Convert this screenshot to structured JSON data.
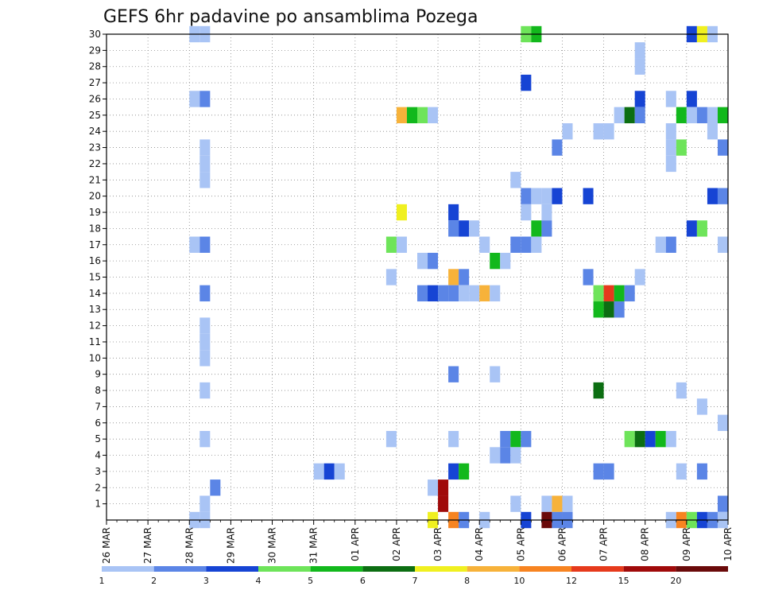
{
  "chart_data": {
    "type": "heatmap",
    "title": "GEFS 6hr padavine po ansamblima Pozega",
    "xlabel": "",
    "ylabel": "",
    "x_tick_labels": [
      "26 MAR",
      "27 MAR",
      "28 MAR",
      "29 MAR",
      "30 MAR",
      "31 MAR",
      "01 APR",
      "02 APR",
      "03 APR",
      "04 APR",
      "05 APR",
      "06 APR",
      "07 APR",
      "08 APR",
      "09 APR",
      "10 APR"
    ],
    "y_tick_labels": [
      "1",
      "2",
      "3",
      "4",
      "5",
      "6",
      "7",
      "8",
      "9",
      "10",
      "11",
      "12",
      "13",
      "14",
      "15",
      "16",
      "17",
      "18",
      "19",
      "20",
      "21",
      "22",
      "23",
      "24",
      "25",
      "26",
      "27",
      "28",
      "29",
      "30"
    ],
    "xlim": [
      0,
      60
    ],
    "ylim": [
      0,
      30
    ],
    "x_units": "6-hour steps from 26 MAR 00Z",
    "y_units": "ensemble member",
    "grid": true,
    "color_scale": {
      "labels": [
        "1",
        "2",
        "3",
        "4",
        "5",
        "6",
        "7",
        "8",
        "10",
        "12",
        "15",
        "20"
      ],
      "colors": [
        "#a9c4f5",
        "#5b85e6",
        "#1644d4",
        "#6ee45a",
        "#12b81c",
        "#0c6e12",
        "#f0f020",
        "#f7b23a",
        "#f78421",
        "#e63a1c",
        "#a00a0a",
        "#6a0a0a"
      ]
    },
    "cells": [
      [
        8,
        30,
        0
      ],
      [
        9,
        30,
        0
      ],
      [
        40,
        30,
        3
      ],
      [
        41,
        30,
        4
      ],
      [
        56,
        30,
        2
      ],
      [
        57,
        30,
        6
      ],
      [
        58,
        30,
        0
      ],
      [
        51,
        29,
        0
      ],
      [
        51,
        28,
        0
      ],
      [
        40,
        27,
        2
      ],
      [
        8,
        26,
        0
      ],
      [
        9,
        26,
        1
      ],
      [
        51,
        26,
        2
      ],
      [
        54,
        26,
        0
      ],
      [
        56,
        26,
        2
      ],
      [
        28,
        25,
        7
      ],
      [
        29,
        25,
        4
      ],
      [
        30,
        25,
        3
      ],
      [
        31,
        25,
        0
      ],
      [
        49,
        25,
        0
      ],
      [
        50,
        25,
        5
      ],
      [
        51,
        25,
        1
      ],
      [
        55,
        25,
        4
      ],
      [
        56,
        25,
        0
      ],
      [
        57,
        25,
        1
      ],
      [
        58,
        25,
        0
      ],
      [
        59,
        25,
        4
      ],
      [
        44,
        24,
        0
      ],
      [
        47,
        24,
        0
      ],
      [
        48,
        24,
        0
      ],
      [
        54,
        24,
        0
      ],
      [
        58,
        24,
        0
      ],
      [
        9,
        23,
        0
      ],
      [
        43,
        23,
        1
      ],
      [
        54,
        23,
        0
      ],
      [
        55,
        23,
        3
      ],
      [
        59,
        23,
        1
      ],
      [
        9,
        22,
        0
      ],
      [
        54,
        22,
        0
      ],
      [
        9,
        21,
        0
      ],
      [
        39,
        21,
        0
      ],
      [
        40,
        20,
        1
      ],
      [
        41,
        20,
        0
      ],
      [
        42,
        20,
        0
      ],
      [
        43,
        20,
        2
      ],
      [
        46,
        20,
        2
      ],
      [
        58,
        20,
        2
      ],
      [
        59,
        20,
        1
      ],
      [
        28,
        19,
        6
      ],
      [
        33,
        19,
        2
      ],
      [
        40,
        19,
        0
      ],
      [
        42,
        19,
        0
      ],
      [
        33,
        18,
        1
      ],
      [
        34,
        18,
        2
      ],
      [
        35,
        18,
        0
      ],
      [
        41,
        18,
        4
      ],
      [
        42,
        18,
        1
      ],
      [
        56,
        18,
        2
      ],
      [
        57,
        18,
        3
      ],
      [
        8,
        17,
        0
      ],
      [
        9,
        17,
        1
      ],
      [
        27,
        17,
        3
      ],
      [
        28,
        17,
        0
      ],
      [
        36,
        17,
        0
      ],
      [
        39,
        17,
        1
      ],
      [
        40,
        17,
        1
      ],
      [
        41,
        17,
        0
      ],
      [
        53,
        17,
        0
      ],
      [
        54,
        17,
        1
      ],
      [
        59,
        17,
        0
      ],
      [
        30,
        16,
        0
      ],
      [
        31,
        16,
        1
      ],
      [
        37,
        16,
        4
      ],
      [
        38,
        16,
        0
      ],
      [
        27,
        15,
        0
      ],
      [
        33,
        15,
        7
      ],
      [
        34,
        15,
        1
      ],
      [
        46,
        15,
        1
      ],
      [
        51,
        15,
        0
      ],
      [
        9,
        14,
        1
      ],
      [
        30,
        14,
        1
      ],
      [
        31,
        14,
        2
      ],
      [
        32,
        14,
        1
      ],
      [
        33,
        14,
        1
      ],
      [
        34,
        14,
        0
      ],
      [
        35,
        14,
        0
      ],
      [
        36,
        14,
        7
      ],
      [
        37,
        14,
        0
      ],
      [
        47,
        14,
        3
      ],
      [
        48,
        14,
        9
      ],
      [
        49,
        14,
        4
      ],
      [
        50,
        14,
        1
      ],
      [
        47,
        13,
        4
      ],
      [
        48,
        13,
        5
      ],
      [
        49,
        13,
        1
      ],
      [
        9,
        12,
        0
      ],
      [
        9,
        11,
        0
      ],
      [
        9,
        10,
        0
      ],
      [
        33,
        9,
        1
      ],
      [
        37,
        9,
        0
      ],
      [
        9,
        8,
        0
      ],
      [
        47,
        8,
        5
      ],
      [
        55,
        8,
        0
      ],
      [
        57,
        7,
        0
      ],
      [
        59,
        6,
        0
      ],
      [
        9,
        5,
        0
      ],
      [
        27,
        5,
        0
      ],
      [
        33,
        5,
        0
      ],
      [
        38,
        5,
        1
      ],
      [
        39,
        5,
        4
      ],
      [
        40,
        5,
        1
      ],
      [
        50,
        5,
        3
      ],
      [
        51,
        5,
        5
      ],
      [
        52,
        5,
        2
      ],
      [
        53,
        5,
        4
      ],
      [
        54,
        5,
        0
      ],
      [
        37,
        4,
        0
      ],
      [
        38,
        4,
        1
      ],
      [
        39,
        4,
        0
      ],
      [
        20,
        3,
        0
      ],
      [
        21,
        3,
        2
      ],
      [
        22,
        3,
        0
      ],
      [
        33,
        3,
        2
      ],
      [
        34,
        3,
        4
      ],
      [
        47,
        3,
        1
      ],
      [
        48,
        3,
        1
      ],
      [
        55,
        3,
        0
      ],
      [
        57,
        3,
        1
      ],
      [
        10,
        2,
        1
      ],
      [
        31,
        2,
        0
      ],
      [
        32,
        2,
        10
      ],
      [
        32,
        1,
        10
      ],
      [
        9,
        1,
        0
      ],
      [
        39,
        1,
        0
      ],
      [
        42,
        1,
        0
      ],
      [
        43,
        1,
        7
      ],
      [
        44,
        1,
        0
      ],
      [
        59,
        1,
        1
      ],
      [
        8,
        0,
        0
      ],
      [
        9,
        0,
        0
      ],
      [
        31,
        0,
        6
      ],
      [
        33,
        0,
        8
      ],
      [
        34,
        0,
        1
      ],
      [
        36,
        0,
        0
      ],
      [
        40,
        0,
        2
      ],
      [
        42,
        0,
        11
      ],
      [
        43,
        0,
        1
      ],
      [
        44,
        0,
        1
      ],
      [
        54,
        0,
        0
      ],
      [
        55,
        0,
        8
      ],
      [
        56,
        0,
        3
      ],
      [
        57,
        0,
        2
      ],
      [
        58,
        0,
        1
      ],
      [
        59,
        0,
        0
      ]
    ]
  }
}
